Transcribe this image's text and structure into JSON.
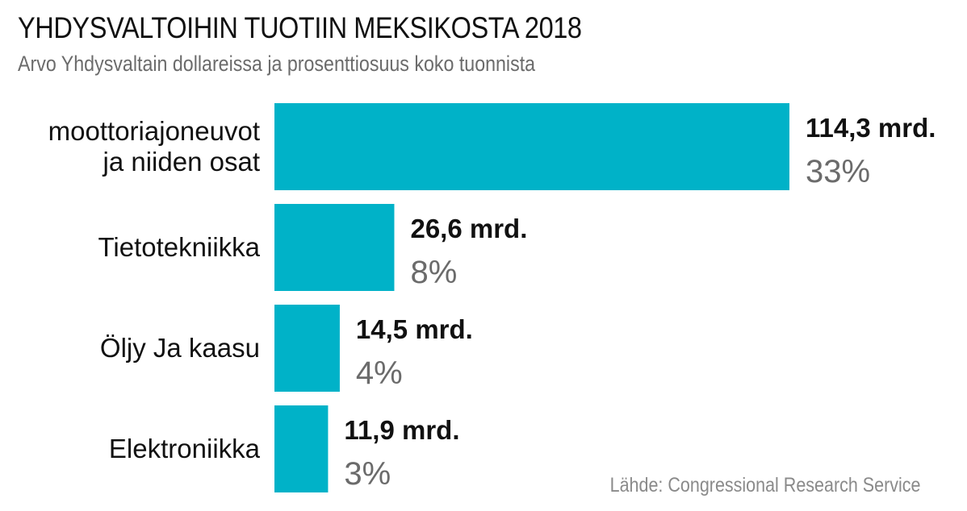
{
  "chart_data": {
    "type": "bar",
    "orientation": "horizontal",
    "title": "YHDYSVALTOIHIN TUOTIIN MEKSIKOSTA 2018",
    "subtitle": "Arvo Yhdysvaltain dollareissa ja prosenttiosuus koko tuonnista",
    "source": "Lähde: Congressional Research Service",
    "categories": [
      [
        "moottoriajoneuvot",
        "ja niiden osat"
      ],
      [
        "Tietotekniikka"
      ],
      [
        "Öljy Ja kaasu"
      ],
      [
        "Elektroniikka"
      ]
    ],
    "values": [
      114.3,
      26.6,
      14.5,
      11.9
    ],
    "value_labels": [
      "114,3 mrd.",
      "26,6 mrd.",
      "14,5 mrd.",
      "11,9 mrd."
    ],
    "percent_labels": [
      "33%",
      "8%",
      "4%",
      "3%"
    ],
    "bar_color": "#00b2c8",
    "grid": false,
    "legend": "none"
  }
}
